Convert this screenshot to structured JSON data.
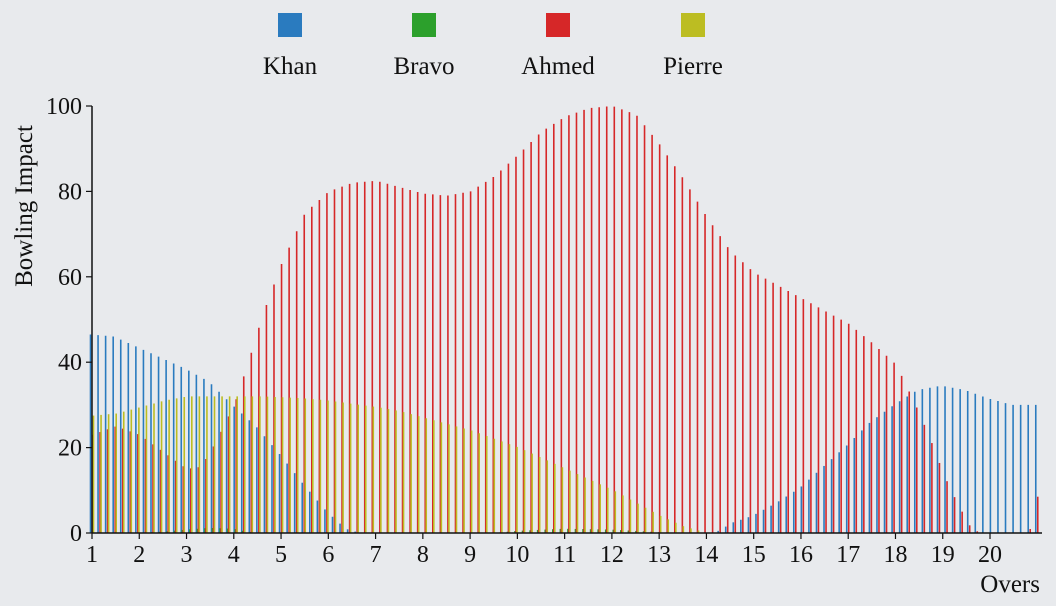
{
  "chart_data": {
    "type": "bar",
    "xlabel": "Overs",
    "ylabel": "Bowling Impact",
    "xlim": [
      1,
      21.1
    ],
    "ylim": [
      0,
      100
    ],
    "x_ticks": [
      1,
      2,
      3,
      4,
      5,
      6,
      7,
      8,
      9,
      10,
      11,
      12,
      13,
      14,
      15,
      16,
      17,
      18,
      19,
      20
    ],
    "y_ticks": [
      0,
      20,
      40,
      60,
      80,
      100
    ],
    "x_step": 0.16,
    "grid": false,
    "legend_position": "top",
    "series": [
      {
        "name": "Khan",
        "color": "#2a7bbf",
        "points": [
          [
            1.0,
            46.5
          ],
          [
            1.5,
            46.0
          ],
          [
            2.0,
            43.5
          ],
          [
            2.5,
            41.0
          ],
          [
            3.0,
            38.5
          ],
          [
            3.5,
            35.5
          ],
          [
            4.0,
            30.0
          ],
          [
            4.5,
            25.0
          ],
          [
            5.0,
            18.5
          ],
          [
            5.5,
            11.5
          ],
          [
            6.0,
            5.0
          ],
          [
            6.4,
            1.0
          ],
          [
            6.7,
            0.0
          ],
          [
            14.2,
            0.0
          ],
          [
            14.6,
            2.5
          ],
          [
            15.0,
            4.0
          ],
          [
            15.5,
            7.0
          ],
          [
            16.0,
            10.5
          ],
          [
            16.5,
            15.5
          ],
          [
            17.0,
            20.5
          ],
          [
            17.5,
            26.0
          ],
          [
            18.0,
            30.0
          ],
          [
            18.5,
            33.5
          ],
          [
            19.0,
            34.5
          ],
          [
            19.5,
            33.5
          ],
          [
            20.0,
            31.5
          ],
          [
            20.5,
            30.0
          ],
          [
            20.8,
            30.0
          ]
        ]
      },
      {
        "name": "Bravo",
        "color": "#2ca02c",
        "points": [
          [
            1.0,
            0.0
          ],
          [
            1.8,
            0.0
          ],
          [
            2.5,
            0.3
          ],
          [
            3.0,
            0.8
          ],
          [
            3.5,
            1.2
          ],
          [
            4.0,
            1.0
          ],
          [
            4.3,
            0.3
          ],
          [
            4.6,
            0.0
          ],
          [
            9.5,
            0.0
          ],
          [
            10.0,
            0.5
          ],
          [
            11.0,
            1.0
          ],
          [
            12.0,
            0.8
          ],
          [
            13.0,
            0.2
          ],
          [
            13.5,
            0.0
          ],
          [
            21.0,
            0.0
          ]
        ]
      },
      {
        "name": "Ahmed",
        "color": "#d62728",
        "points": [
          [
            1.0,
            23.0
          ],
          [
            1.5,
            25.0
          ],
          [
            2.0,
            23.0
          ],
          [
            2.5,
            19.0
          ],
          [
            3.0,
            15.0
          ],
          [
            3.3,
            15.5
          ],
          [
            3.6,
            21.0
          ],
          [
            4.0,
            30.0
          ],
          [
            4.3,
            40.0
          ],
          [
            4.6,
            51.0
          ],
          [
            5.0,
            63.0
          ],
          [
            5.5,
            75.0
          ],
          [
            6.0,
            80.0
          ],
          [
            6.5,
            82.0
          ],
          [
            7.0,
            82.5
          ],
          [
            7.5,
            81.0
          ],
          [
            8.0,
            79.5
          ],
          [
            8.5,
            79.0
          ],
          [
            9.0,
            80.0
          ],
          [
            9.5,
            83.5
          ],
          [
            10.0,
            88.5
          ],
          [
            10.5,
            94.0
          ],
          [
            11.0,
            97.5
          ],
          [
            11.5,
            99.5
          ],
          [
            12.0,
            100.0
          ],
          [
            12.5,
            98.0
          ],
          [
            13.0,
            91.0
          ],
          [
            13.5,
            83.0
          ],
          [
            14.0,
            74.0
          ],
          [
            14.5,
            66.0
          ],
          [
            15.0,
            61.0
          ],
          [
            15.5,
            58.0
          ],
          [
            16.0,
            55.0
          ],
          [
            16.5,
            52.0
          ],
          [
            17.0,
            49.0
          ],
          [
            17.5,
            44.5
          ],
          [
            18.0,
            39.5
          ],
          [
            18.2,
            35.0
          ],
          [
            18.5,
            28.0
          ],
          [
            18.8,
            20.0
          ],
          [
            19.0,
            14.0
          ],
          [
            19.3,
            7.0
          ],
          [
            19.6,
            1.0
          ],
          [
            19.8,
            0.0
          ],
          [
            20.7,
            0.0
          ],
          [
            20.85,
            1.0
          ],
          [
            21.0,
            8.5
          ]
        ]
      },
      {
        "name": "Pierre",
        "color": "#bcbd22",
        "points": [
          [
            1.0,
            27.5
          ],
          [
            1.5,
            28.0
          ],
          [
            2.0,
            29.5
          ],
          [
            2.5,
            31.0
          ],
          [
            3.0,
            32.0
          ],
          [
            3.5,
            32.0
          ],
          [
            4.0,
            32.0
          ],
          [
            4.5,
            32.0
          ],
          [
            5.0,
            31.8
          ],
          [
            5.5,
            31.5
          ],
          [
            6.0,
            31.0
          ],
          [
            6.5,
            30.2
          ],
          [
            7.0,
            29.5
          ],
          [
            7.5,
            28.5
          ],
          [
            8.0,
            27.0
          ],
          [
            8.5,
            25.5
          ],
          [
            9.0,
            24.0
          ],
          [
            9.5,
            22.0
          ],
          [
            10.0,
            20.0
          ],
          [
            10.5,
            17.5
          ],
          [
            11.0,
            15.0
          ],
          [
            11.5,
            12.5
          ],
          [
            12.0,
            10.0
          ],
          [
            12.5,
            7.0
          ],
          [
            13.0,
            4.0
          ],
          [
            13.5,
            1.5
          ],
          [
            14.0,
            0.0
          ],
          [
            21.0,
            0.0
          ]
        ]
      }
    ]
  }
}
